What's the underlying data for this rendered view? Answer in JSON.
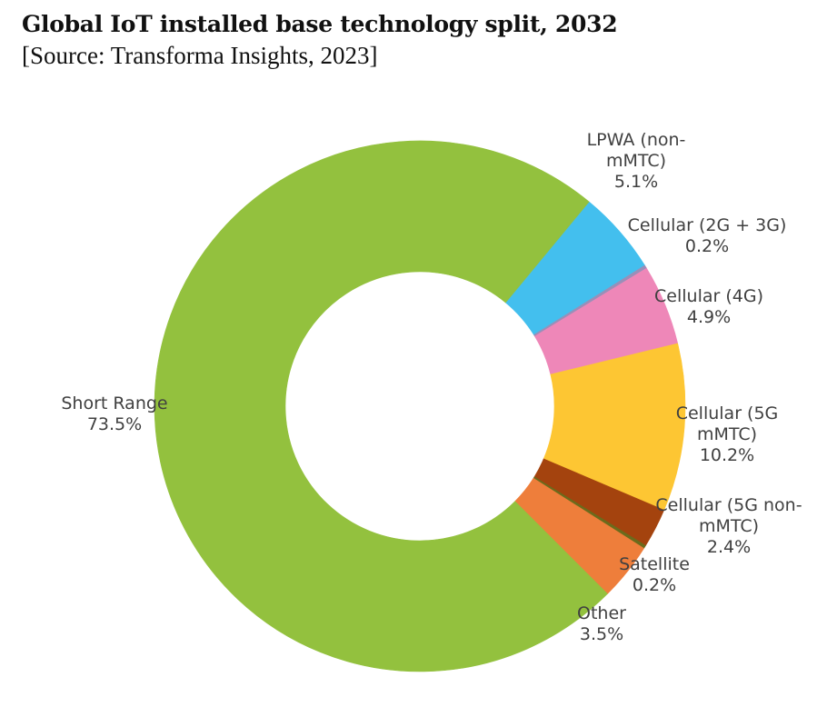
{
  "title": "Global IoT installed base technology split, 2032",
  "subtitle": "[Source: Transforma Insights, 2023]",
  "chart_data": {
    "type": "pie",
    "donut": true,
    "title": "Global IoT installed base technology split, 2032",
    "subtitle": "[Source: Transforma Insights, 2023]",
    "unit": "%",
    "slices": [
      {
        "label": "LPWA (non-mMTC)",
        "line1": "LPWA (non-",
        "line2": "mMTC)",
        "value": 5.1,
        "display": "5.1%",
        "color": "#43BFEE"
      },
      {
        "label": "Cellular (2G + 3G)",
        "line1": "Cellular (2G + 3G)",
        "line2": "",
        "value": 0.2,
        "display": "0.2%",
        "color": "#9A8FB8"
      },
      {
        "label": "Cellular (4G)",
        "line1": "Cellular (4G)",
        "line2": "",
        "value": 4.9,
        "display": "4.9%",
        "color": "#EE87B8"
      },
      {
        "label": "Cellular (5G mMTC)",
        "line1": "Cellular (5G",
        "line2": "mMTC)",
        "value": 10.2,
        "display": "10.2%",
        "color": "#FDC633"
      },
      {
        "label": "Cellular (5G non-mMTC)",
        "line1": "Cellular (5G non-",
        "line2": "mMTC)",
        "value": 2.4,
        "display": "2.4%",
        "color": "#A4430E"
      },
      {
        "label": "Satellite",
        "line1": "Satellite",
        "line2": "",
        "value": 0.2,
        "display": "0.2%",
        "color": "#6B6B1C"
      },
      {
        "label": "Other",
        "line1": "Other",
        "line2": "",
        "value": 3.5,
        "display": "3.5%",
        "color": "#EE7E3B"
      },
      {
        "label": "Short Range",
        "line1": "Short Range",
        "line2": "",
        "value": 73.5,
        "display": "73.5%",
        "color": "#93C13E"
      }
    ]
  }
}
